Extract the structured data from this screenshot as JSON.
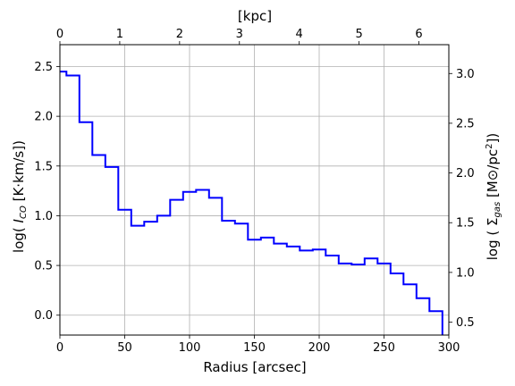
{
  "chart_data": {
    "type": "line",
    "style": "step",
    "grid": true,
    "series": [
      {
        "color": "#0000ff",
        "bin_edges": [
          0,
          5,
          15,
          25,
          35,
          45,
          55,
          65,
          75,
          85,
          95,
          105,
          115,
          125,
          135,
          145,
          155,
          165,
          175,
          185,
          195,
          205,
          215,
          225,
          235,
          245,
          255,
          265,
          275,
          285,
          295
        ],
        "values": [
          2.45,
          2.41,
          1.94,
          1.61,
          1.49,
          1.06,
          0.9,
          0.94,
          1.0,
          1.16,
          1.24,
          1.26,
          1.18,
          0.95,
          0.92,
          0.76,
          0.78,
          0.72,
          0.69,
          0.65,
          0.66,
          0.6,
          0.52,
          0.51,
          0.57,
          0.52,
          0.42,
          0.31,
          0.17,
          0.04
        ]
      }
    ],
    "x_axis": {
      "label": "Radius [arcsec]",
      "lim": [
        0,
        300
      ],
      "ticks": [
        0,
        50,
        100,
        150,
        200,
        250,
        300
      ],
      "tick_labels": [
        "0",
        "50",
        "100",
        "150",
        "200",
        "250",
        "300"
      ]
    },
    "x2_axis": {
      "label": "[kpc]",
      "lim": [
        0,
        6.5
      ],
      "ticks": [
        0,
        1,
        2,
        3,
        4,
        5,
        6
      ],
      "tick_labels": [
        "0",
        "1",
        "2",
        "3",
        "4",
        "5",
        "6"
      ]
    },
    "y_axis": {
      "label": "log( I_CO [K·km/s])",
      "label_parts": [
        "log( ",
        "I",
        "CO",
        " [K·km/s])"
      ],
      "lim": [
        -0.2,
        2.72
      ],
      "ticks": [
        0.0,
        0.5,
        1.0,
        1.5,
        2.0,
        2.5
      ],
      "tick_labels": [
        "0.0",
        "0.5",
        "1.0",
        "1.5",
        "2.0",
        "2.5"
      ]
    },
    "y2_axis": {
      "label": "log ( Σgas [M⊙/pc2])",
      "label_parts": [
        "log ( Σ",
        "gas",
        " [M⊙/pc",
        "2",
        "])"
      ],
      "lim": [
        0.37,
        3.29
      ],
      "ticks": [
        0.5,
        1.0,
        1.5,
        2.0,
        2.5,
        3.0
      ],
      "tick_labels": [
        "0.5",
        "1.0",
        "1.5",
        "2.0",
        "2.5",
        "3.0"
      ]
    }
  }
}
